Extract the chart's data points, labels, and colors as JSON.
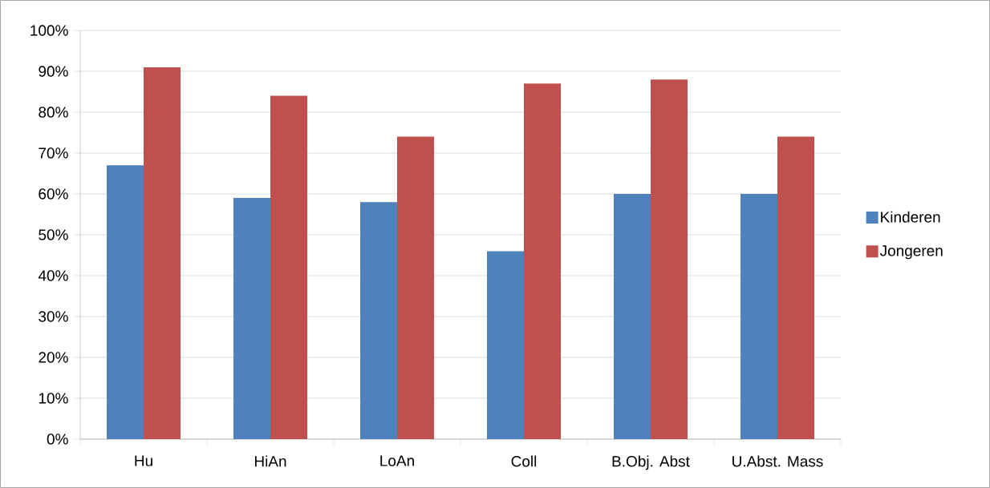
{
  "chart_data": {
    "type": "bar",
    "categories": [
      "Hu",
      "HiAn",
      "LoAn",
      "Coll",
      "B.Obj. Abst",
      "U.Abst. Mass"
    ],
    "series": [
      {
        "name": "Kinderen",
        "color": "#4f81bd",
        "values": [
          67,
          59,
          58,
          46,
          60,
          60
        ]
      },
      {
        "name": "Jongeren",
        "color": "#c0504d",
        "values": [
          91,
          84,
          74,
          87,
          88,
          74
        ]
      }
    ],
    "ylim": [
      0,
      100
    ],
    "yticks": [
      {
        "value": 0,
        "label": "0%"
      },
      {
        "value": 10,
        "label": "10%"
      },
      {
        "value": 20,
        "label": "20%"
      },
      {
        "value": 30,
        "label": "30%"
      },
      {
        "value": 40,
        "label": "40%"
      },
      {
        "value": 50,
        "label": "50%"
      },
      {
        "value": 60,
        "label": "60%"
      },
      {
        "value": 70,
        "label": "70%"
      },
      {
        "value": 80,
        "label": "80%"
      },
      {
        "value": 90,
        "label": "90%"
      },
      {
        "value": 100,
        "label": "100%"
      }
    ],
    "grid": "y",
    "legend": "right"
  }
}
